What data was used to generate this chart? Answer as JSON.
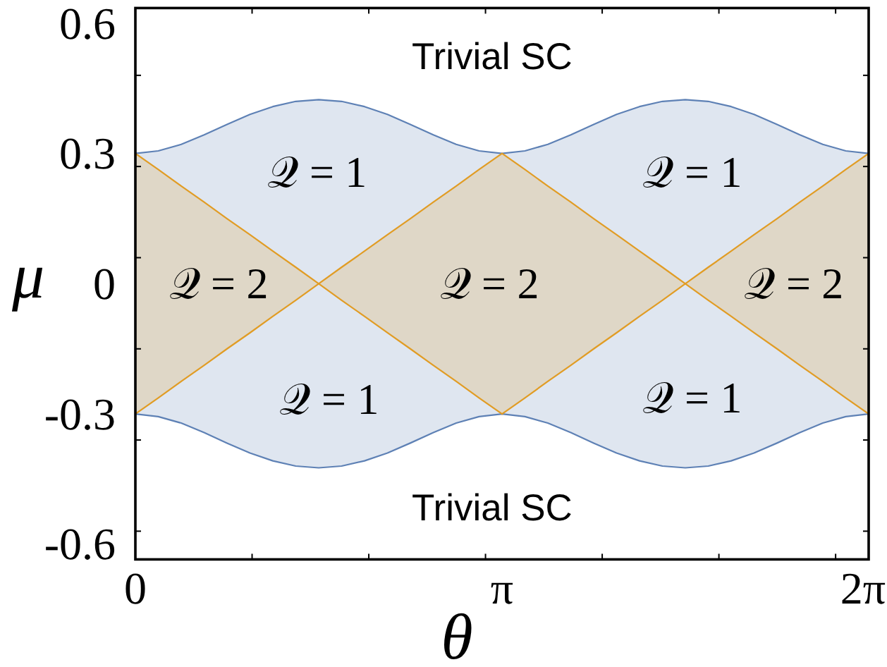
{
  "chart_data": {
    "type": "line",
    "xlabel": "θ",
    "ylabel": "μ",
    "x": [
      0,
      0.196,
      0.393,
      0.589,
      0.785,
      0.982,
      1.178,
      1.374,
      1.571,
      1.767,
      1.963,
      2.16,
      2.356,
      2.553,
      2.749,
      2.945,
      3.142,
      3.338,
      3.534,
      3.731,
      3.927,
      4.123,
      4.32,
      4.516,
      4.712,
      4.909,
      5.105,
      5.301,
      5.498,
      5.694,
      5.89,
      6.087,
      6.283
    ],
    "series": [
      {
        "color": "#5e81b5",
        "values": [
          0.3,
          0.306,
          0.321,
          0.343,
          0.367,
          0.39,
          0.408,
          0.42,
          0.424,
          0.42,
          0.408,
          0.39,
          0.367,
          0.343,
          0.321,
          0.306,
          0.3,
          0.306,
          0.321,
          0.343,
          0.367,
          0.39,
          0.408,
          0.42,
          0.424,
          0.42,
          0.408,
          0.39,
          0.367,
          0.343,
          0.321,
          0.306,
          0.3
        ],
        "lower": [
          -0.3,
          -0.306,
          -0.321,
          -0.343,
          -0.367,
          -0.39,
          -0.408,
          -0.42,
          -0.424,
          -0.42,
          -0.408,
          -0.39,
          -0.367,
          -0.343,
          -0.321,
          -0.306,
          -0.3,
          -0.306,
          -0.321,
          -0.343,
          -0.367,
          -0.39,
          -0.408,
          -0.42,
          -0.424,
          -0.42,
          -0.408,
          -0.39,
          -0.367,
          -0.343,
          -0.321,
          -0.306,
          -0.3
        ],
        "upper": [
          0.3,
          0.306,
          0.321,
          0.343,
          0.367,
          0.39,
          0.408,
          0.42,
          0.424,
          0.42,
          0.408,
          0.39,
          0.367,
          0.343,
          0.321,
          0.306,
          0.3,
          0.306,
          0.321,
          0.343,
          0.367,
          0.39,
          0.408,
          0.42,
          0.424,
          0.42,
          0.408,
          0.39,
          0.367,
          0.343,
          0.321,
          0.306,
          0.3
        ]
      },
      {
        "color": "#5e81b5",
        "values": [
          -0.3,
          -0.306,
          -0.321,
          -0.343,
          -0.367,
          -0.39,
          -0.408,
          -0.42,
          -0.424,
          -0.42,
          -0.408,
          -0.39,
          -0.367,
          -0.343,
          -0.321,
          -0.306,
          -0.3,
          -0.306,
          -0.321,
          -0.343,
          -0.367,
          -0.39,
          -0.408,
          -0.42,
          -0.424,
          -0.42,
          -0.408,
          -0.39,
          -0.367,
          -0.343,
          -0.321,
          -0.306,
          -0.3
        ]
      },
      {
        "color": "#e19c24",
        "values": [
          0.3,
          0.263,
          0.225,
          0.188,
          0.15,
          0.113,
          0.075,
          0.038,
          0,
          0.038,
          0.075,
          0.113,
          0.15,
          0.188,
          0.225,
          0.263,
          0.3,
          0.263,
          0.225,
          0.188,
          0.15,
          0.113,
          0.075,
          0.038,
          0,
          0.038,
          0.075,
          0.113,
          0.15,
          0.188,
          0.225,
          0.263,
          0.3
        ],
        "lower": [
          -0.3,
          -0.263,
          -0.225,
          -0.188,
          -0.15,
          -0.113,
          -0.075,
          -0.038,
          0,
          -0.038,
          -0.075,
          -0.113,
          -0.15,
          -0.188,
          -0.225,
          -0.263,
          -0.3,
          -0.263,
          -0.225,
          -0.188,
          -0.15,
          -0.113,
          -0.075,
          -0.038,
          0,
          -0.038,
          -0.075,
          -0.113,
          -0.15,
          -0.188,
          -0.225,
          -0.263,
          -0.3
        ],
        "upper": [
          0.3,
          0.263,
          0.225,
          0.188,
          0.15,
          0.113,
          0.075,
          0.038,
          0,
          0.038,
          0.075,
          0.113,
          0.15,
          0.188,
          0.225,
          0.263,
          0.3,
          0.263,
          0.225,
          0.188,
          0.15,
          0.113,
          0.075,
          0.038,
          0,
          0.038,
          0.075,
          0.113,
          0.15,
          0.188,
          0.225,
          0.263,
          0.3
        ]
      },
      {
        "color": "#e19c24",
        "values": [
          -0.3,
          -0.263,
          -0.225,
          -0.188,
          -0.15,
          -0.113,
          -0.075,
          -0.038,
          0,
          -0.038,
          -0.075,
          -0.113,
          -0.15,
          -0.188,
          -0.225,
          -0.263,
          -0.3,
          -0.263,
          -0.225,
          -0.188,
          -0.15,
          -0.113,
          -0.075,
          -0.038,
          0,
          -0.038,
          -0.075,
          -0.113,
          -0.15,
          -0.188,
          -0.225,
          -0.263,
          -0.3
        ]
      }
    ],
    "xlim": [
      0,
      6.2832
    ],
    "ylim": [
      -0.635,
      0.635
    ],
    "xticks": [
      0,
      {
        "value": 1,
        "label": null
      },
      {
        "value": 2,
        "label": null
      },
      {
        "value": 3,
        "label": null
      },
      {
        "value": 3.1416,
        "label": "π"
      },
      {
        "value": 4,
        "label": null
      },
      {
        "value": 5,
        "label": null
      },
      {
        "value": 6,
        "label": null
      },
      {
        "value": 6.2832,
        "label": "2π"
      }
    ],
    "yticks": [
      -0.6,
      {
        "value": -0.57,
        "label": null
      },
      {
        "value": -0.36,
        "label": null
      },
      -0.3,
      {
        "value": -0.15,
        "label": null
      },
      0,
      {
        "value": 0.06,
        "label": null
      },
      {
        "value": 0.27,
        "label": null
      },
      0.3,
      {
        "value": 0.48,
        "label": null
      },
      0.6
    ],
    "annotations": [
      "Trivial SC",
      "𝒬 = 1",
      "𝒬 = 1",
      "𝒬 = 2",
      "𝒬 = 2",
      "𝒬 = 2",
      "𝒬 = 1",
      "𝒬 = 1",
      "Trivial SC"
    ]
  }
}
